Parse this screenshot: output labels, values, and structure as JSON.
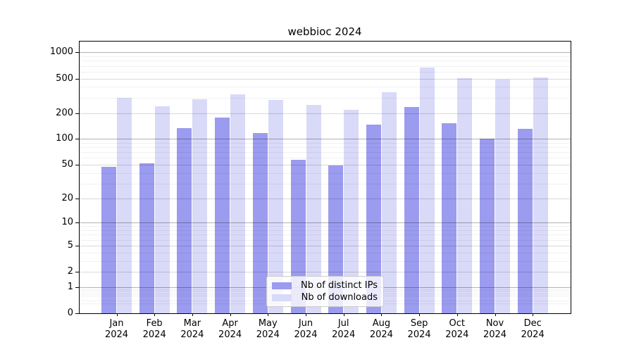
{
  "chart_data": {
    "type": "bar",
    "title": "webbioc 2024",
    "categories": [
      "Jan 2024",
      "Feb 2024",
      "Mar 2024",
      "Apr 2024",
      "May 2024",
      "Jun 2024",
      "Jul 2024",
      "Aug 2024",
      "Sep 2024",
      "Oct 2024",
      "Nov 2024",
      "Dec 2024"
    ],
    "series": [
      {
        "name": "Nb of distinct IPs",
        "color": "#9b9bef",
        "values": [
          47,
          52,
          134,
          178,
          117,
          57,
          49,
          147,
          233,
          153,
          100,
          131
        ]
      },
      {
        "name": "Nb of downloads",
        "color": "#d9d9f8",
        "values": [
          299,
          241,
          290,
          329,
          284,
          250,
          218,
          348,
          669,
          505,
          487,
          515
        ]
      }
    ],
    "yscale": "log1p",
    "yticks": [
      0,
      1,
      2,
      5,
      10,
      20,
      50,
      100,
      200,
      500,
      1000
    ],
    "ylim": [
      0,
      1333
    ],
    "grid": true,
    "legend_position": "lower center",
    "xlabel": "",
    "ylabel": ""
  }
}
